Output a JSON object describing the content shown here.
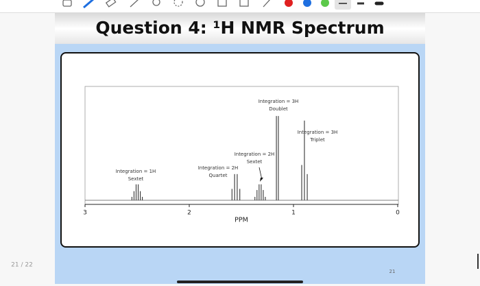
{
  "slide": {
    "title": "Question 4: ¹H NMR Spectrum",
    "number": "21"
  },
  "page_indicator": "21 / 22",
  "chart_data": {
    "type": "spectrum",
    "xlabel": "PPM",
    "xlim": [
      3,
      0
    ],
    "xticks": [
      3,
      2,
      1,
      0
    ],
    "ylim": [
      0,
      1
    ],
    "x": [
      2.55,
      2.53,
      2.51,
      2.49,
      2.47,
      2.45,
      1.59,
      1.565,
      1.54,
      1.515,
      1.37,
      1.35,
      1.33,
      1.31,
      1.29,
      1.27,
      1.164,
      1.145,
      0.921,
      0.895,
      0.868
    ],
    "values": [
      0.03,
      0.08,
      0.14,
      0.14,
      0.08,
      0.03,
      0.1,
      0.23,
      0.23,
      0.1,
      0.03,
      0.09,
      0.14,
      0.14,
      0.09,
      0.03,
      0.74,
      0.74,
      0.31,
      0.7,
      0.23
    ],
    "annotations": [
      {
        "lines": [
          "Integration = 1H",
          "Sextet"
        ]
      },
      {
        "lines": [
          "Integration = 2H",
          "Quartet"
        ]
      },
      {
        "lines": [
          "Integration = 2H",
          "Sextet"
        ]
      },
      {
        "lines": [
          "Integration = 3H",
          "Doublet"
        ]
      },
      {
        "lines": [
          "Integration = 3H",
          "Triplet"
        ]
      }
    ]
  }
}
